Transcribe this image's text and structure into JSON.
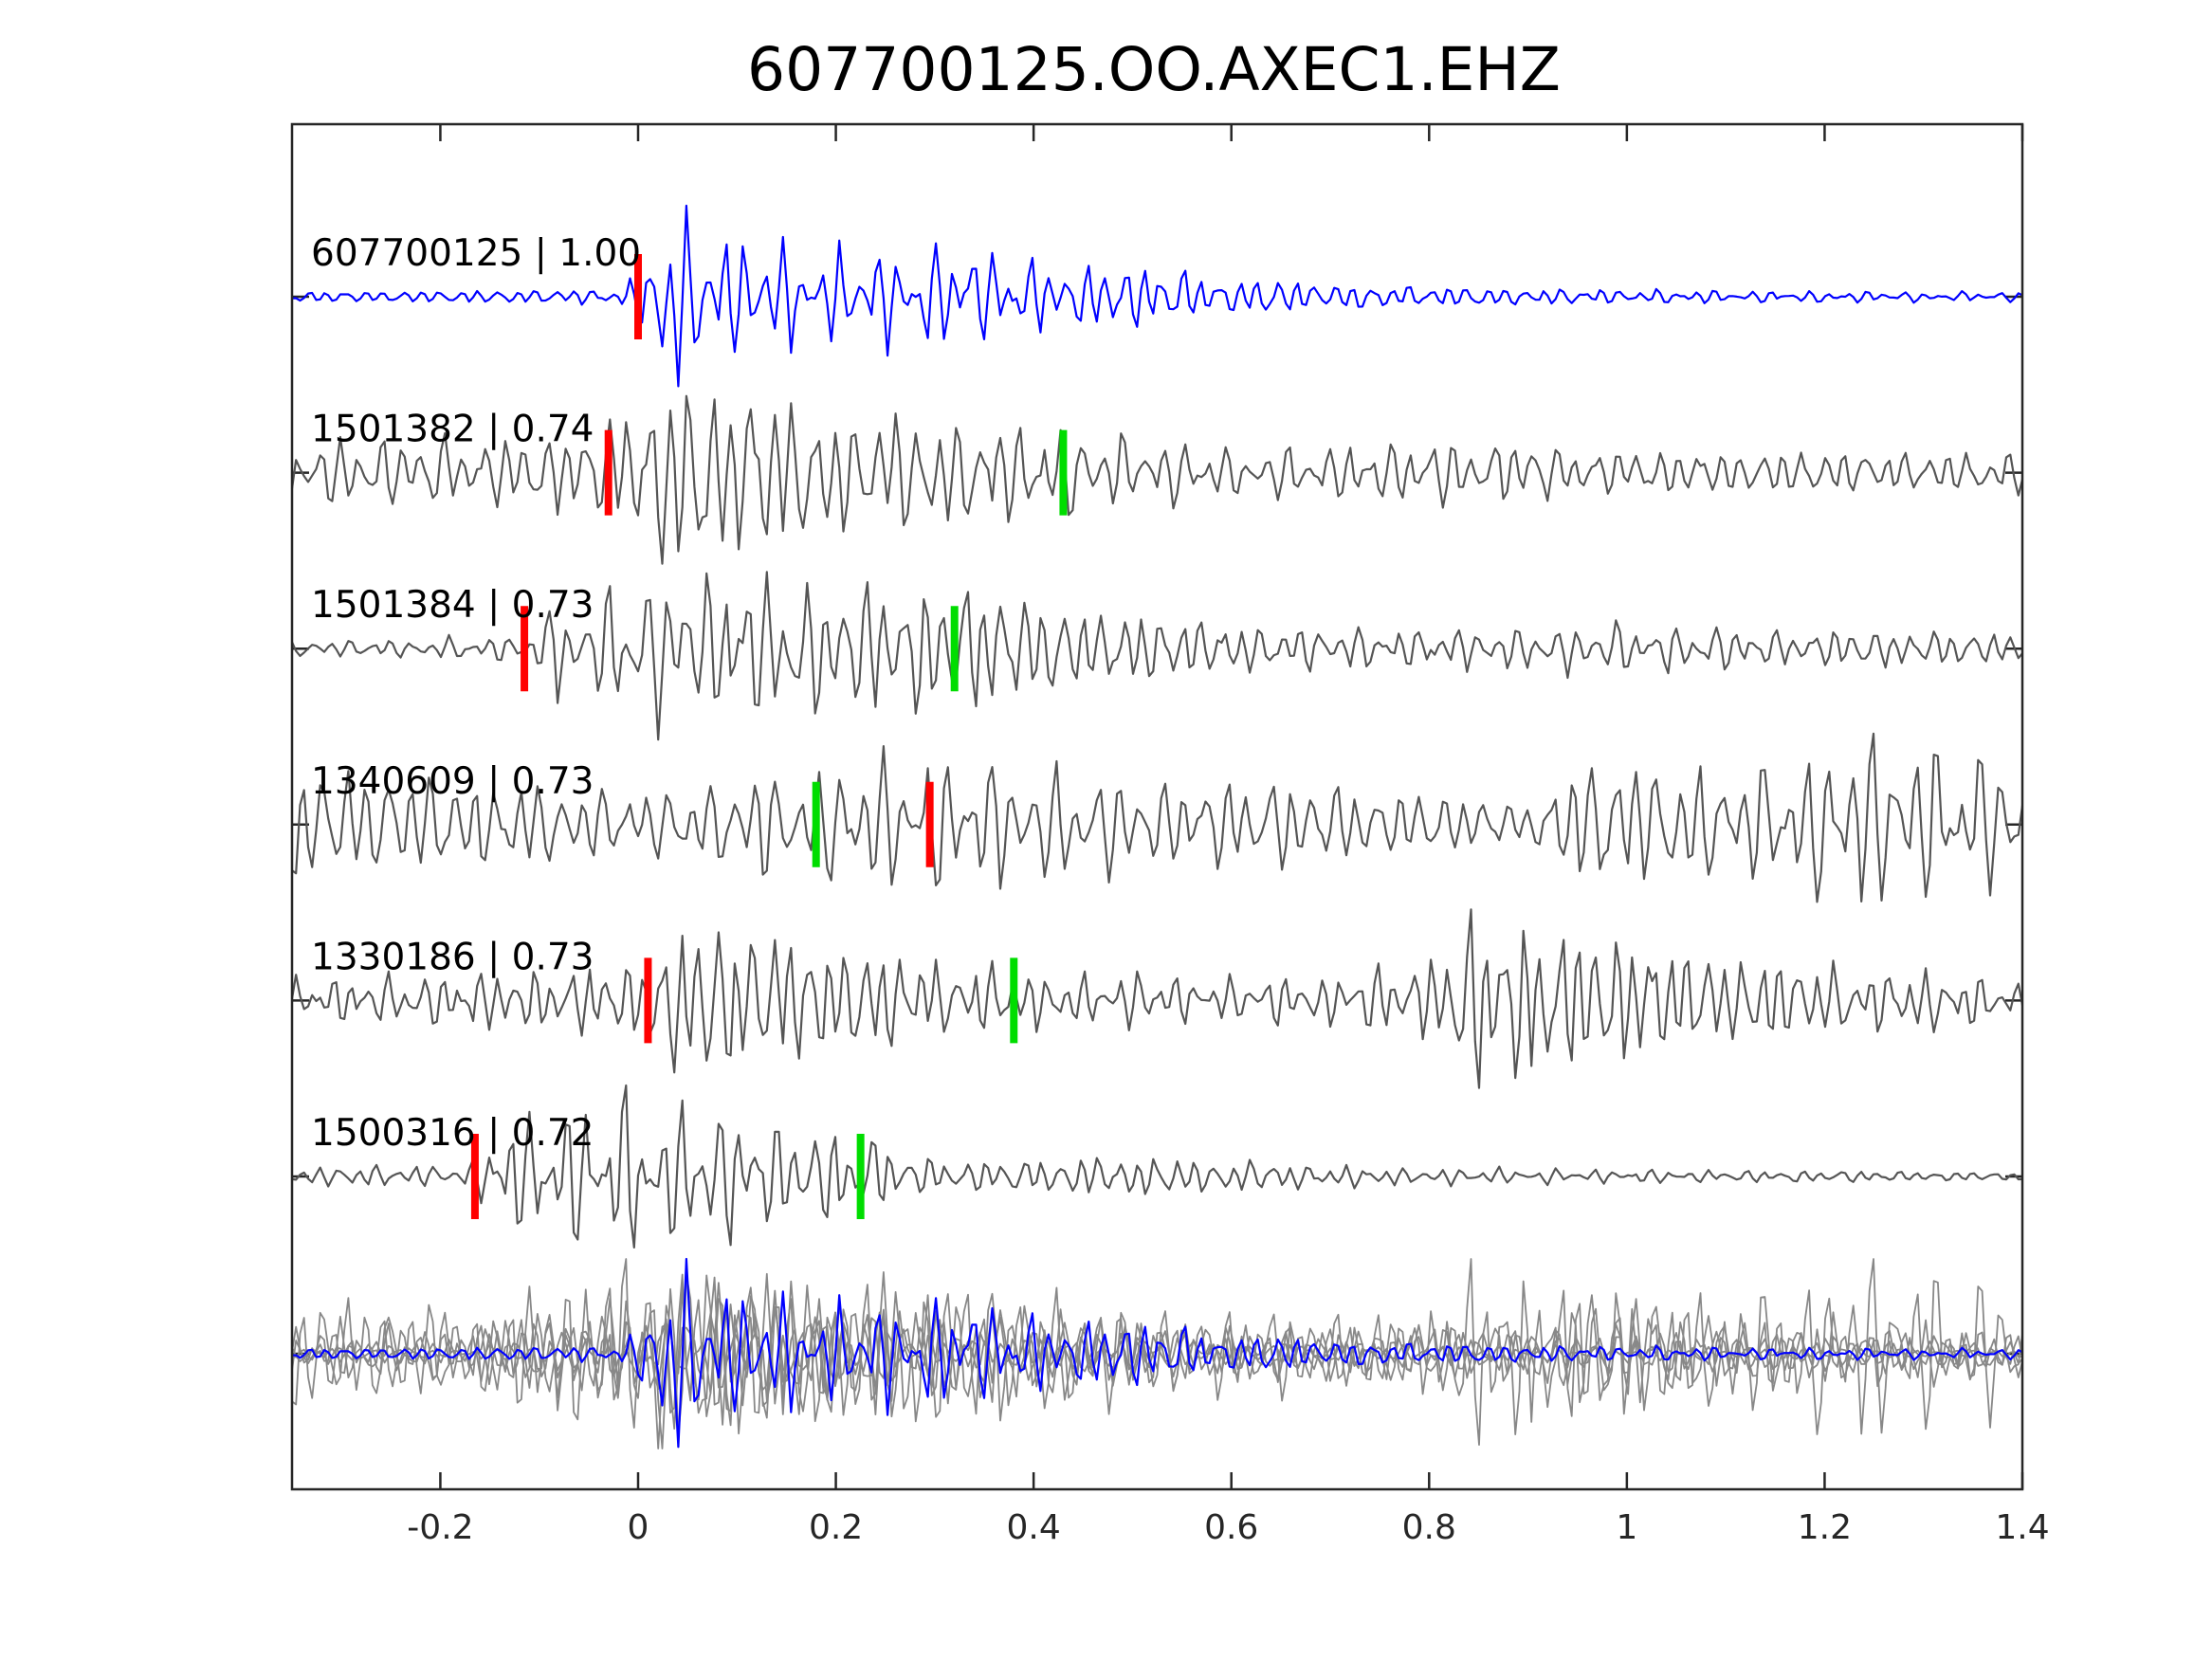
{
  "chart_data": {
    "type": "line",
    "title": "607700125.OO.AXEC1.EHZ",
    "xlabel": "",
    "ylabel": "",
    "xlim": [
      -0.35,
      1.4
    ],
    "xticks": [
      -0.2,
      0,
      0.2,
      0.4,
      0.6,
      0.8,
      1,
      1.2,
      1.4
    ],
    "xtick_labels": [
      "-0.2",
      "0",
      "0.2",
      "0.4",
      "0.6",
      "0.8",
      "1",
      "1.2",
      "1.4"
    ],
    "grid": false,
    "legend": "none",
    "colors": {
      "template": "#0000ff",
      "match": "#555555",
      "overlay_match": "#888888",
      "p_pick": "#ff0000",
      "s_pick": "#00dd00",
      "axes": "#262626"
    },
    "series": [
      {
        "label": "607700125 | 1.00",
        "event_id": "607700125",
        "correlation": 1.0,
        "role": "template",
        "p_pick": 0.0,
        "s_pick": null,
        "envelope": [
          [
            -0.35,
            0.06
          ],
          [
            -0.02,
            0.08
          ],
          [
            0.0,
            0.25
          ],
          [
            0.02,
            1.0
          ],
          [
            0.05,
            0.9
          ],
          [
            0.1,
            0.65
          ],
          [
            0.2,
            0.5
          ],
          [
            0.3,
            0.55
          ],
          [
            0.4,
            0.45
          ],
          [
            0.5,
            0.35
          ],
          [
            0.6,
            0.22
          ],
          [
            0.8,
            0.12
          ],
          [
            1.0,
            0.08
          ],
          [
            1.4,
            0.05
          ]
        ],
        "freq_hz": 52
      },
      {
        "label": "1501382 | 0.74",
        "event_id": "1501382",
        "correlation": 0.74,
        "role": "match",
        "p_pick": -0.03,
        "s_pick": 0.43,
        "envelope": [
          [
            -0.35,
            0.3
          ],
          [
            -0.05,
            0.4
          ],
          [
            0.0,
            0.75
          ],
          [
            0.05,
            1.0
          ],
          [
            0.15,
            0.75
          ],
          [
            0.3,
            0.6
          ],
          [
            0.45,
            0.45
          ],
          [
            0.6,
            0.25
          ],
          [
            0.8,
            0.35
          ],
          [
            1.0,
            0.25
          ],
          [
            1.4,
            0.2
          ]
        ],
        "freq_hz": 48
      },
      {
        "label": "1501384 | 0.73",
        "event_id": "1501384",
        "correlation": 0.73,
        "role": "match",
        "p_pick": -0.115,
        "s_pick": 0.32,
        "envelope": [
          [
            -0.35,
            0.1
          ],
          [
            -0.12,
            0.15
          ],
          [
            -0.08,
            0.6
          ],
          [
            0.06,
            1.0
          ],
          [
            0.2,
            0.75
          ],
          [
            0.33,
            0.8
          ],
          [
            0.45,
            0.55
          ],
          [
            0.6,
            0.3
          ],
          [
            0.8,
            0.25
          ],
          [
            1.0,
            0.3
          ],
          [
            1.4,
            0.2
          ]
        ],
        "freq_hz": 50
      },
      {
        "label": "1340609 | 0.73",
        "event_id": "1340609",
        "correlation": 0.73,
        "role": "match",
        "p_pick": 0.295,
        "s_pick": 0.18,
        "envelope": [
          [
            -0.35,
            0.7
          ],
          [
            -0.1,
            0.5
          ],
          [
            0.0,
            0.35
          ],
          [
            0.1,
            0.55
          ],
          [
            0.3,
            0.85
          ],
          [
            0.5,
            0.55
          ],
          [
            0.7,
            0.45
          ],
          [
            0.9,
            0.25
          ],
          [
            0.95,
            0.8
          ],
          [
            1.1,
            0.6
          ],
          [
            1.25,
            1.0
          ],
          [
            1.4,
            0.7
          ]
        ],
        "freq_hz": 46
      },
      {
        "label": "1330186 | 0.73",
        "event_id": "1330186",
        "correlation": 0.73,
        "role": "match",
        "p_pick": 0.01,
        "s_pick": 0.38,
        "envelope": [
          [
            -0.35,
            0.25
          ],
          [
            0.0,
            0.4
          ],
          [
            0.04,
            1.0
          ],
          [
            0.15,
            0.7
          ],
          [
            0.3,
            0.45
          ],
          [
            0.45,
            0.3
          ],
          [
            0.7,
            0.25
          ],
          [
            0.8,
            0.5
          ],
          [
            0.85,
            1.0
          ],
          [
            1.0,
            0.7
          ],
          [
            1.2,
            0.4
          ],
          [
            1.4,
            0.25
          ]
        ],
        "freq_hz": 54
      },
      {
        "label": "1500316 | 0.72",
        "event_id": "1500316",
        "correlation": 0.72,
        "role": "match",
        "p_pick": -0.165,
        "s_pick": 0.225,
        "envelope": [
          [
            -0.35,
            0.1
          ],
          [
            -0.17,
            0.15
          ],
          [
            -0.12,
            0.8
          ],
          [
            0.0,
            1.0
          ],
          [
            0.12,
            0.7
          ],
          [
            0.22,
            0.55
          ],
          [
            0.3,
            0.2
          ],
          [
            0.5,
            0.25
          ],
          [
            0.8,
            0.1
          ],
          [
            1.4,
            0.05
          ]
        ],
        "freq_hz": 52
      }
    ]
  }
}
